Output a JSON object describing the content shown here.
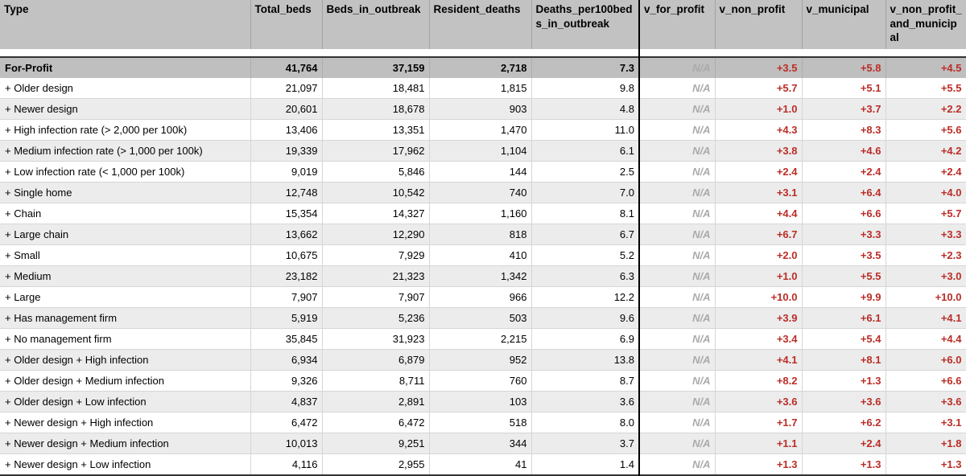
{
  "chart_data": {
    "type": "table",
    "columns": [
      "Type",
      "Total_beds",
      "Beds_in_outbreak",
      "Resident_deaths",
      "Deaths_per100beds_in_outbreak",
      "v_for_profit",
      "v_non_profit",
      "v_municipal",
      "v_non_profit_and_municipal"
    ],
    "column_keys": [
      "type",
      "total-beds",
      "beds-in-outbreak",
      "resident-deaths",
      "deaths-per100beds-in-outbreak",
      "v-for-profit",
      "v-non-profit",
      "v-municipal",
      "v-non-profit-and-municipal"
    ],
    "highlight_row": [
      "For-Profit",
      "41,764",
      "37,159",
      "2,718",
      "7.3",
      "N/A",
      "+3.5",
      "+5.8",
      "+4.5"
    ],
    "rows": [
      [
        "+ Older design",
        "21,097",
        "18,481",
        "1,815",
        "9.8",
        "N/A",
        "+5.7",
        "+5.1",
        "+5.5"
      ],
      [
        "+ Newer design",
        "20,601",
        "18,678",
        "903",
        "4.8",
        "N/A",
        "+1.0",
        "+3.7",
        "+2.2"
      ],
      [
        "+ High infection rate (> 2,000 per 100k)",
        "13,406",
        "13,351",
        "1,470",
        "11.0",
        "N/A",
        "+4.3",
        "+8.3",
        "+5.6"
      ],
      [
        "+ Medium infection rate (> 1,000 per 100k)",
        "19,339",
        "17,962",
        "1,104",
        "6.1",
        "N/A",
        "+3.8",
        "+4.6",
        "+4.2"
      ],
      [
        "+ Low infection rate (< 1,000 per 100k)",
        "9,019",
        "5,846",
        "144",
        "2.5",
        "N/A",
        "+2.4",
        "+2.4",
        "+2.4"
      ],
      [
        "+ Single home",
        "12,748",
        "10,542",
        "740",
        "7.0",
        "N/A",
        "+3.1",
        "+6.4",
        "+4.0"
      ],
      [
        "+ Chain",
        "15,354",
        "14,327",
        "1,160",
        "8.1",
        "N/A",
        "+4.4",
        "+6.6",
        "+5.7"
      ],
      [
        "+ Large chain",
        "13,662",
        "12,290",
        "818",
        "6.7",
        "N/A",
        "+6.7",
        "+3.3",
        "+3.3"
      ],
      [
        "+ Small",
        "10,675",
        "7,929",
        "410",
        "5.2",
        "N/A",
        "+2.0",
        "+3.5",
        "+2.3"
      ],
      [
        "+ Medium",
        "23,182",
        "21,323",
        "1,342",
        "6.3",
        "N/A",
        "+1.0",
        "+5.5",
        "+3.0"
      ],
      [
        "+ Large",
        "7,907",
        "7,907",
        "966",
        "12.2",
        "N/A",
        "+10.0",
        "+9.9",
        "+10.0"
      ],
      [
        "+ Has management firm",
        "5,919",
        "5,236",
        "503",
        "9.6",
        "N/A",
        "+3.9",
        "+6.1",
        "+4.1"
      ],
      [
        "+ No management firm",
        "35,845",
        "31,923",
        "2,215",
        "6.9",
        "N/A",
        "+3.4",
        "+5.4",
        "+4.4"
      ],
      [
        "+ Older design + High infection",
        "6,934",
        "6,879",
        "952",
        "13.8",
        "N/A",
        "+4.1",
        "+8.1",
        "+6.0"
      ],
      [
        "+ Older design + Medium infection",
        "9,326",
        "8,711",
        "760",
        "8.7",
        "N/A",
        "+8.2",
        "+1.3",
        "+6.6"
      ],
      [
        "+ Older design + Low infection",
        "4,837",
        "2,891",
        "103",
        "3.6",
        "N/A",
        "+3.6",
        "+3.6",
        "+3.6"
      ],
      [
        "+ Newer design + High infection",
        "6,472",
        "6,472",
        "518",
        "8.0",
        "N/A",
        "+1.7",
        "+6.2",
        "+3.1"
      ],
      [
        "+ Newer design + Medium infection",
        "10,013",
        "9,251",
        "344",
        "3.7",
        "N/A",
        "+1.1",
        "+2.4",
        "+1.8"
      ],
      [
        "+ Newer design + Low infection",
        "4,116",
        "2,955",
        "41",
        "1.4",
        "N/A",
        "+1.3",
        "+1.3",
        "+1.3"
      ]
    ],
    "layout": {
      "grid": "on",
      "black_divider_after_column": "Deaths_per100beds_in_outbreak",
      "striped_rows": true
    }
  },
  "colors": {
    "positive_red": "#bb2d27",
    "na_gray": "#aaaaaa",
    "header_bg": "#c2c2c2",
    "highlight_bg": "#bfbfbf",
    "stripe_bg": "#ececec",
    "grid_line": "#d6d6d6",
    "header_sep": "#a3a3a3",
    "highlight_sep": "#adadad",
    "dark_border": "#333333"
  }
}
